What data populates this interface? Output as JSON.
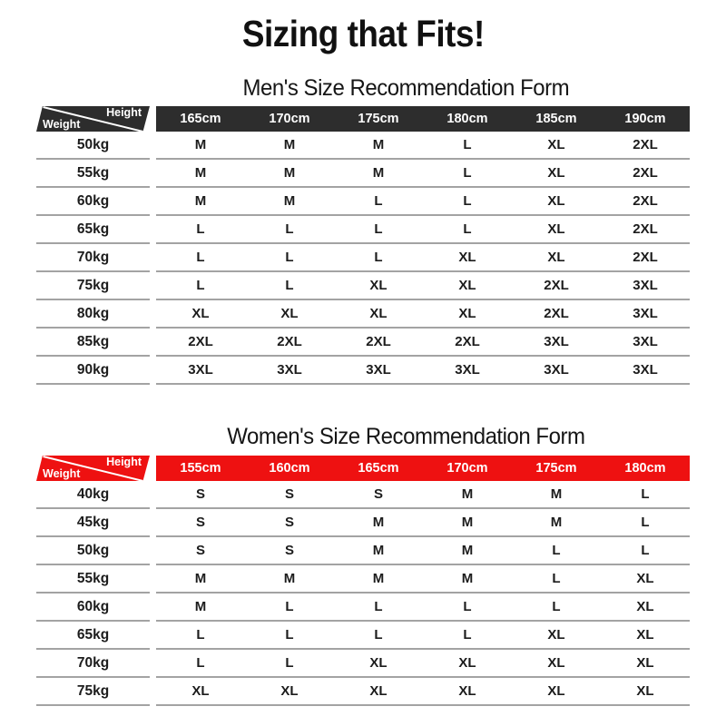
{
  "page": {
    "title": "Sizing that Fits!"
  },
  "tables": [
    {
      "title": "Men's Size Recommendation Form",
      "theme_color": "#2d2d2d",
      "corner": {
        "top_label": "Height",
        "bottom_label": "Weight"
      },
      "columns": [
        "165cm",
        "170cm",
        "175cm",
        "180cm",
        "185cm",
        "190cm"
      ],
      "rows": [
        {
          "weight": "50kg",
          "sizes": [
            "M",
            "M",
            "M",
            "L",
            "XL",
            "2XL"
          ]
        },
        {
          "weight": "55kg",
          "sizes": [
            "M",
            "M",
            "M",
            "L",
            "XL",
            "2XL"
          ]
        },
        {
          "weight": "60kg",
          "sizes": [
            "M",
            "M",
            "L",
            "L",
            "XL",
            "2XL"
          ]
        },
        {
          "weight": "65kg",
          "sizes": [
            "L",
            "L",
            "L",
            "L",
            "XL",
            "2XL"
          ]
        },
        {
          "weight": "70kg",
          "sizes": [
            "L",
            "L",
            "L",
            "XL",
            "XL",
            "2XL"
          ]
        },
        {
          "weight": "75kg",
          "sizes": [
            "L",
            "L",
            "XL",
            "XL",
            "2XL",
            "3XL"
          ]
        },
        {
          "weight": "80kg",
          "sizes": [
            "XL",
            "XL",
            "XL",
            "XL",
            "2XL",
            "3XL"
          ]
        },
        {
          "weight": "85kg",
          "sizes": [
            "2XL",
            "2XL",
            "2XL",
            "2XL",
            "3XL",
            "3XL"
          ]
        },
        {
          "weight": "90kg",
          "sizes": [
            "3XL",
            "3XL",
            "3XL",
            "3XL",
            "3XL",
            "3XL"
          ]
        }
      ]
    },
    {
      "title": "Women's Size Recommendation Form",
      "theme_color": "#ee1111",
      "corner": {
        "top_label": "Height",
        "bottom_label": "Weight"
      },
      "columns": [
        "155cm",
        "160cm",
        "165cm",
        "170cm",
        "175cm",
        "180cm"
      ],
      "rows": [
        {
          "weight": "40kg",
          "sizes": [
            "S",
            "S",
            "S",
            "M",
            "M",
            "L"
          ]
        },
        {
          "weight": "45kg",
          "sizes": [
            "S",
            "S",
            "M",
            "M",
            "M",
            "L"
          ]
        },
        {
          "weight": "50kg",
          "sizes": [
            "S",
            "S",
            "M",
            "M",
            "L",
            "L"
          ]
        },
        {
          "weight": "55kg",
          "sizes": [
            "M",
            "M",
            "M",
            "M",
            "L",
            "XL"
          ]
        },
        {
          "weight": "60kg",
          "sizes": [
            "M",
            "L",
            "L",
            "L",
            "L",
            "XL"
          ]
        },
        {
          "weight": "65kg",
          "sizes": [
            "L",
            "L",
            "L",
            "L",
            "XL",
            "XL"
          ]
        },
        {
          "weight": "70kg",
          "sizes": [
            "L",
            "L",
            "XL",
            "XL",
            "XL",
            "XL"
          ]
        },
        {
          "weight": "75kg",
          "sizes": [
            "XL",
            "XL",
            "XL",
            "XL",
            "XL",
            "XL"
          ]
        }
      ]
    }
  ],
  "chart_data": [
    {
      "type": "table",
      "title": "Men's Size Recommendation Form",
      "corner_axes": {
        "columns_axis": "Height",
        "rows_axis": "Weight"
      },
      "columns": [
        "165cm",
        "170cm",
        "175cm",
        "180cm",
        "185cm",
        "190cm"
      ],
      "row_labels": [
        "50kg",
        "55kg",
        "60kg",
        "65kg",
        "70kg",
        "75kg",
        "80kg",
        "85kg",
        "90kg"
      ],
      "cells": [
        [
          "M",
          "M",
          "M",
          "L",
          "XL",
          "2XL"
        ],
        [
          "M",
          "M",
          "M",
          "L",
          "XL",
          "2XL"
        ],
        [
          "M",
          "M",
          "L",
          "L",
          "XL",
          "2XL"
        ],
        [
          "L",
          "L",
          "L",
          "L",
          "XL",
          "2XL"
        ],
        [
          "L",
          "L",
          "L",
          "XL",
          "XL",
          "2XL"
        ],
        [
          "L",
          "L",
          "XL",
          "XL",
          "2XL",
          "3XL"
        ],
        [
          "XL",
          "XL",
          "XL",
          "XL",
          "2XL",
          "3XL"
        ],
        [
          "2XL",
          "2XL",
          "2XL",
          "2XL",
          "3XL",
          "3XL"
        ],
        [
          "3XL",
          "3XL",
          "3XL",
          "3XL",
          "3XL",
          "3XL"
        ]
      ],
      "header_color": "#2d2d2d"
    },
    {
      "type": "table",
      "title": "Women's Size Recommendation Form",
      "corner_axes": {
        "columns_axis": "Height",
        "rows_axis": "Weight"
      },
      "columns": [
        "155cm",
        "160cm",
        "165cm",
        "170cm",
        "175cm",
        "180cm"
      ],
      "row_labels": [
        "40kg",
        "45kg",
        "50kg",
        "55kg",
        "60kg",
        "65kg",
        "70kg",
        "75kg"
      ],
      "cells": [
        [
          "S",
          "S",
          "S",
          "M",
          "M",
          "L"
        ],
        [
          "S",
          "S",
          "M",
          "M",
          "M",
          "L"
        ],
        [
          "S",
          "S",
          "M",
          "M",
          "L",
          "L"
        ],
        [
          "M",
          "M",
          "M",
          "M",
          "L",
          "XL"
        ],
        [
          "M",
          "L",
          "L",
          "L",
          "L",
          "XL"
        ],
        [
          "L",
          "L",
          "L",
          "L",
          "XL",
          "XL"
        ],
        [
          "L",
          "L",
          "XL",
          "XL",
          "XL",
          "XL"
        ],
        [
          "XL",
          "XL",
          "XL",
          "XL",
          "XL",
          "XL"
        ]
      ],
      "header_color": "#ee1111"
    }
  ]
}
